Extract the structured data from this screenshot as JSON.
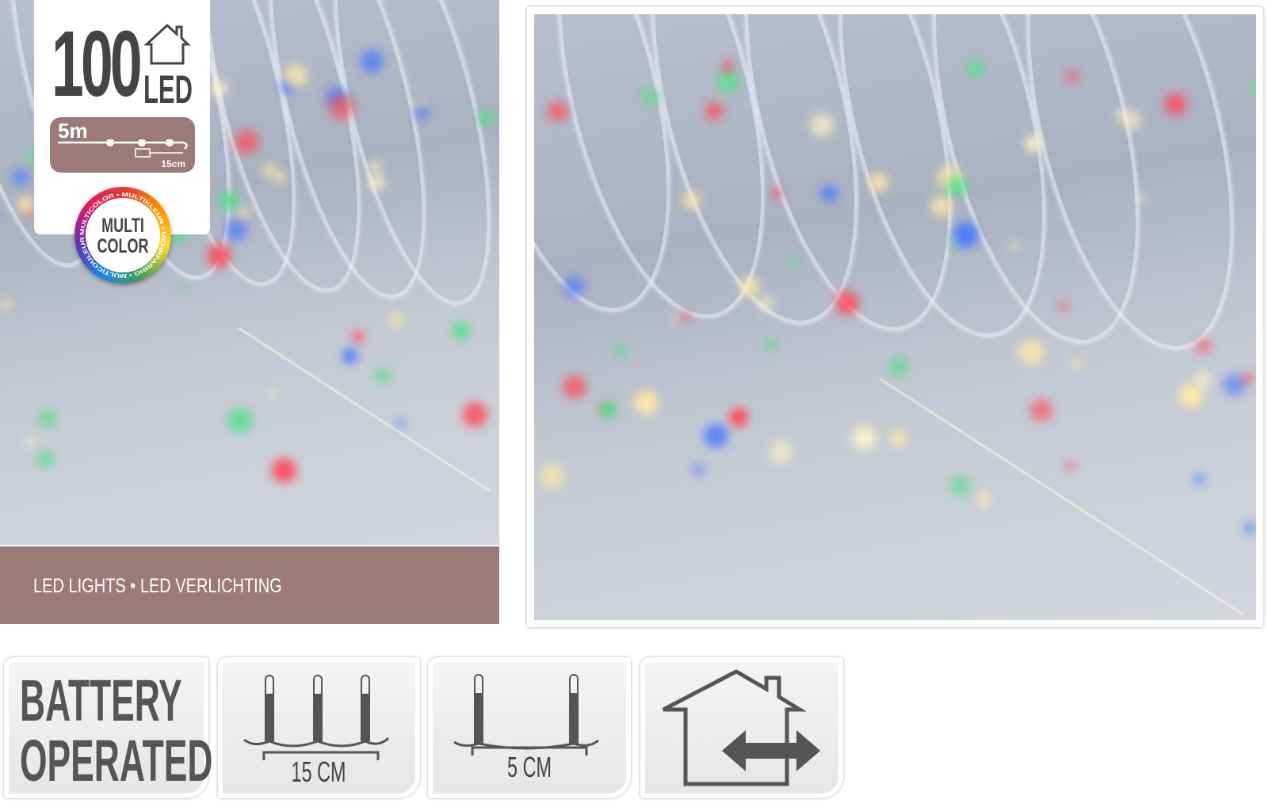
{
  "badge": {
    "count": "100",
    "unit": "LED",
    "length": "5m",
    "spacing": "15cm",
    "multicolor_line1": "MULTI",
    "multicolor_line2": "COLOR",
    "multicolor_ring_text": "MULTICOLOR • MULTIKLEUR • MEHRFARBIG • MULTICOULEUR",
    "brand_color": "#9c7a79"
  },
  "band": {
    "text": "LED LIGHTS • LED VERLICHTING"
  },
  "icons": [
    {
      "name": "battery-operated",
      "line1": "BATTERY",
      "line2": "OPERATED"
    },
    {
      "name": "bulb-spacing",
      "label": "15 CM"
    },
    {
      "name": "lead-cable",
      "label": "5 CM"
    },
    {
      "name": "indoor-use",
      "label": ""
    }
  ]
}
